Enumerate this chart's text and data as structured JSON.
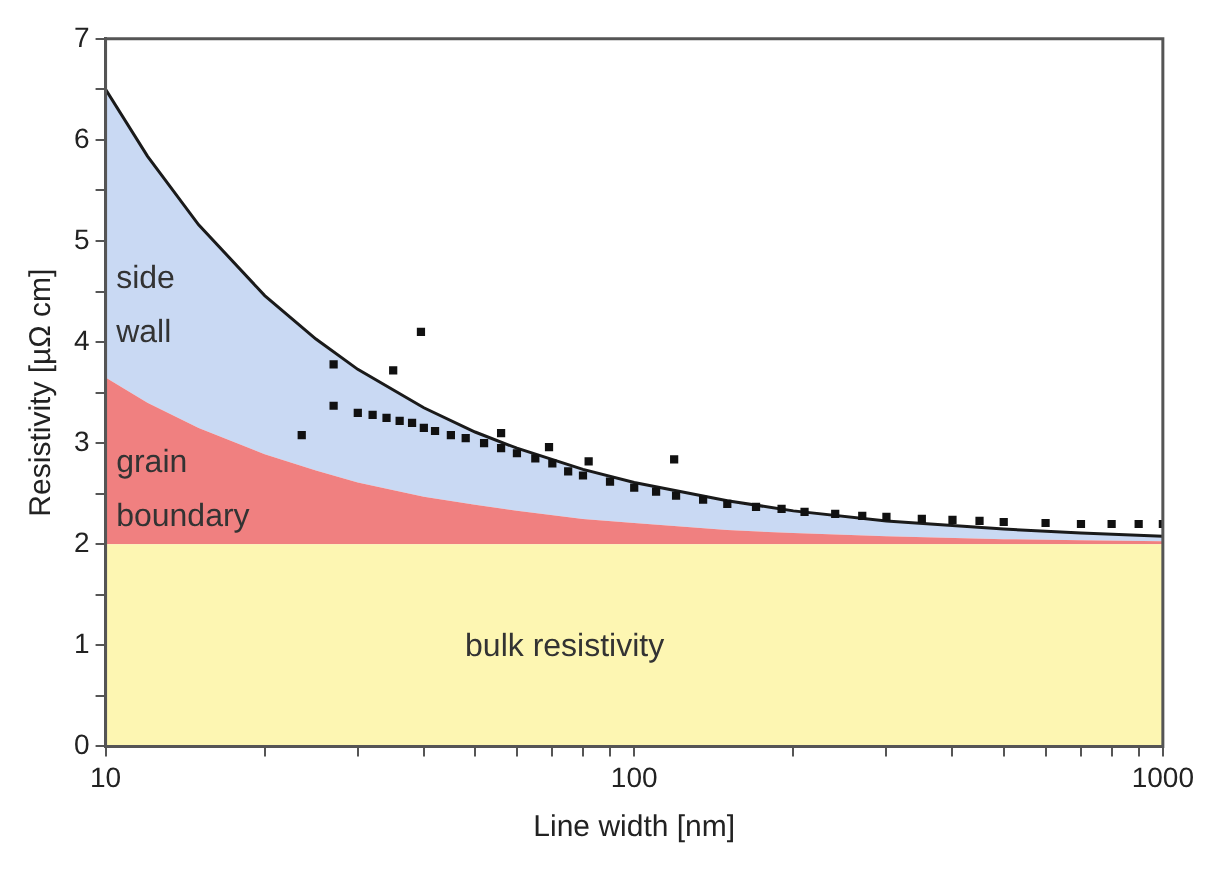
{
  "chart_data": {
    "type": "area",
    "xlabel": "Line width [nm]",
    "ylabel": "Resistivity [µΩ cm]",
    "log": "x",
    "stacked": true,
    "grid": false,
    "legend": false,
    "xlim": [
      10,
      1000
    ],
    "ylim": [
      0,
      7
    ],
    "xticks": [
      10,
      {
        "value": 20,
        "label": null
      },
      {
        "value": 30,
        "label": null
      },
      {
        "value": 40,
        "label": null
      },
      {
        "value": 50,
        "label": null
      },
      {
        "value": 60,
        "label": null
      },
      {
        "value": 70,
        "label": null
      },
      {
        "value": 80,
        "label": null
      },
      {
        "value": 90,
        "label": null
      },
      100,
      {
        "value": 200,
        "label": null
      },
      {
        "value": 300,
        "label": null
      },
      {
        "value": 400,
        "label": null
      },
      {
        "value": 500,
        "label": null
      },
      {
        "value": 600,
        "label": null
      },
      {
        "value": 700,
        "label": null
      },
      {
        "value": 800,
        "label": null
      },
      {
        "value": 900,
        "label": null
      },
      1000
    ],
    "yticks": [
      0,
      {
        "value": 0.5,
        "label": null
      },
      1,
      {
        "value": 1.5,
        "label": null
      },
      2,
      {
        "value": 2.5,
        "label": null
      },
      3,
      {
        "value": 3.5,
        "label": null
      },
      4,
      {
        "value": 4.5,
        "label": null
      },
      5,
      {
        "value": 5.5,
        "label": null
      },
      6,
      {
        "value": 6.5,
        "label": null
      },
      7
    ],
    "x": [
      10,
      12,
      15,
      20,
      25,
      30,
      40,
      50,
      60,
      80,
      100,
      150,
      200,
      300,
      500,
      700,
      1000
    ],
    "series": [
      {
        "color": "#fdf6b2",
        "values": [
          2,
          2,
          2,
          2,
          2,
          2,
          2,
          2,
          2,
          2,
          2,
          2,
          2,
          2,
          2,
          2,
          2
        ]
      },
      {
        "color": "#f08080",
        "values": [
          1.65,
          1.4,
          1.15,
          0.89,
          0.73,
          0.61,
          0.47,
          0.39,
          0.33,
          0.25,
          0.21,
          0.14,
          0.11,
          0.08,
          0.05,
          0.04,
          0.03
        ]
      },
      {
        "color": "#c9d9f3",
        "values": [
          2.85,
          2.44,
          2.01,
          1.57,
          1.3,
          1.12,
          0.88,
          0.72,
          0.62,
          0.49,
          0.4,
          0.29,
          0.22,
          0.15,
          0.1,
          0.07,
          0.05
        ]
      },
      {
        "type": "scatter",
        "color": "#111111",
        "marker": "square",
        "x": [
          23.5,
          27,
          27,
          35,
          39.5,
          56,
          69,
          82,
          119,
          30,
          32,
          34,
          36,
          38,
          40,
          42,
          45,
          48,
          52,
          56,
          60,
          65,
          70,
          75,
          80,
          90,
          100,
          110,
          120,
          135,
          150,
          170,
          190,
          210,
          240,
          270,
          300,
          350,
          400,
          450,
          500,
          600,
          700,
          800,
          900,
          1000
        ],
        "values": [
          3.08,
          3.37,
          3.78,
          3.72,
          4.1,
          3.1,
          2.96,
          2.82,
          2.84,
          3.3,
          3.28,
          3.25,
          3.22,
          3.2,
          3.15,
          3.12,
          3.08,
          3.05,
          3,
          2.95,
          2.9,
          2.85,
          2.8,
          2.72,
          2.68,
          2.62,
          2.56,
          2.52,
          2.48,
          2.44,
          2.4,
          2.37,
          2.35,
          2.32,
          2.3,
          2.28,
          2.27,
          2.25,
          2.24,
          2.23,
          2.22,
          2.21,
          2.2,
          2.2,
          2.2,
          2.2
        ]
      }
    ],
    "annotations": [
      "side wall",
      "grain boundary",
      "bulk resistivity"
    ]
  }
}
